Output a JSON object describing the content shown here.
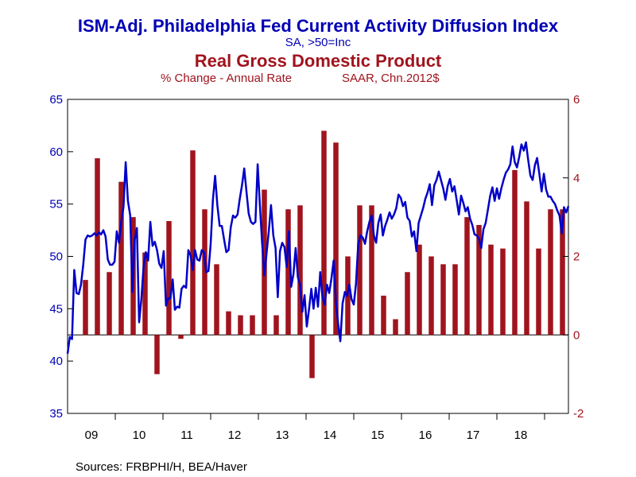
{
  "chart_data": {
    "type": "bar+line",
    "title": "ISM-Adj. Philadelphia Fed Current Activity Diffusion Index",
    "subtitle": "SA, >50=Inc",
    "title2": "Real Gross Domestic Product",
    "subtitle2_left": "% Change - Annual Rate",
    "subtitle2_right": "SAAR, Chn.2012$",
    "source": "Sources:  FRBPHI/H, BEA/Haver",
    "left_axis": {
      "min": 35,
      "max": 65,
      "ticks": [
        "35",
        "40",
        "45",
        "50",
        "55",
        "60",
        "65"
      ]
    },
    "right_axis": {
      "min": -2,
      "max": 6,
      "ticks": [
        "-2",
        "0",
        "2",
        "4",
        "6"
      ]
    },
    "x_axis": {
      "start": 2009.0,
      "end": 2019.5,
      "labels": [
        "09",
        "10",
        "11",
        "12",
        "13",
        "14",
        "15",
        "16",
        "17",
        "18"
      ]
    },
    "colors": {
      "line": "#0000c8",
      "bars": "#a0141e",
      "title_blue": "#0000b4",
      "title_red": "#a0141e",
      "frame": "#000000"
    },
    "series": [
      {
        "name": "Real Gross Domestic Product",
        "type": "bar",
        "axis": "right",
        "quarters": [
          "2009Q2",
          "2009Q3",
          "2009Q4",
          "2010Q1",
          "2010Q2",
          "2010Q3",
          "2010Q4",
          "2011Q1",
          "2011Q2",
          "2011Q3",
          "2011Q4",
          "2012Q1",
          "2012Q2",
          "2012Q3",
          "2012Q4",
          "2013Q1",
          "2013Q2",
          "2013Q3",
          "2013Q4",
          "2014Q1",
          "2014Q2",
          "2014Q3",
          "2014Q4",
          "2015Q1",
          "2015Q2",
          "2015Q3",
          "2015Q4",
          "2016Q1",
          "2016Q2",
          "2016Q3",
          "2016Q4",
          "2017Q1",
          "2017Q2",
          "2017Q3",
          "2017Q4",
          "2018Q1",
          "2018Q2",
          "2018Q3",
          "2018Q4",
          "2019Q1",
          "2019Q2"
        ],
        "values": [
          1.4,
          4.5,
          1.6,
          3.9,
          3.0,
          2.1,
          -1.0,
          2.9,
          -0.1,
          4.7,
          3.2,
          1.8,
          0.6,
          0.5,
          0.5,
          3.7,
          0.5,
          3.2,
          3.3,
          -1.1,
          5.2,
          4.9,
          2.0,
          3.3,
          3.3,
          1.0,
          0.4,
          1.6,
          2.3,
          2.0,
          1.8,
          1.8,
          3.0,
          2.8,
          2.3,
          2.2,
          4.2,
          3.4,
          2.2,
          3.2,
          3.2
        ]
      },
      {
        "name": "ISM-Adj. Philadelphia Fed Current Activity Diffusion Index",
        "type": "line",
        "axis": "left",
        "start": "2009-01",
        "values": [
          40.7,
          42.3,
          42.1,
          48.7,
          46.5,
          46.4,
          47.3,
          49.2,
          51.6,
          52.0,
          51.9,
          52.0,
          52.2,
          52.0,
          52.3,
          52.1,
          52.5,
          51.9,
          49.7,
          49.2,
          49.2,
          49.5,
          52.4,
          51.3,
          53.3,
          54.7,
          59.0,
          55.3,
          53.9,
          46.6,
          51.6,
          52.7,
          43.7,
          45.9,
          49.0,
          50.4,
          49.6,
          53.3,
          51.0,
          51.4,
          50.6,
          49.3,
          48.9,
          50.5,
          45.3,
          46.0,
          46.0,
          47.8,
          44.9,
          45.2,
          45.1,
          46.9,
          47.2,
          47.0,
          50.6,
          50.1,
          48.7,
          50.6,
          49.7,
          49.6,
          50.6,
          50.4,
          48.5,
          48.6,
          51.2,
          55.4,
          57.7,
          54.9,
          52.9,
          52.9,
          51.6,
          50.4,
          50.6,
          52.8,
          53.9,
          53.7,
          54.0,
          55.5,
          56.8,
          58.4,
          56.2,
          54.1,
          53.3,
          53.1,
          53.3,
          58.8,
          54.9,
          51.3,
          48.2,
          50.3,
          52.4,
          54.9,
          52.0,
          50.8,
          46.1,
          50.5,
          51.3,
          50.9,
          49.0,
          52.4,
          47.1,
          48.3,
          50.8,
          48.0,
          47.3,
          44.7,
          46.3,
          43.3,
          45.0,
          46.9,
          45.0,
          47.0,
          45.2,
          48.5,
          46.1,
          45.4,
          47.3,
          46.5,
          47.9,
          49.6,
          45.7,
          43.6,
          41.9,
          45.5,
          46.6,
          46.2,
          47.3,
          45.9,
          45.4,
          47.4,
          51.2,
          52.0,
          51.8,
          51.2,
          52.4,
          53.3,
          53.9,
          52.0,
          51.3,
          53.2,
          54.0,
          52.0,
          52.9,
          53.5,
          54.2,
          53.6,
          54.0,
          54.6,
          55.9,
          55.6,
          54.8,
          55.2,
          53.7,
          53.4,
          51.9,
          52.4,
          50.5,
          53.2,
          53.9,
          54.6,
          55.5,
          56.1,
          56.9,
          54.9,
          56.8,
          57.3,
          58.1,
          57.3,
          56.5,
          55.4,
          56.7,
          57.4,
          56.2,
          56.7,
          55.4,
          54.0,
          55.8,
          55.1,
          54.3,
          54.7,
          53.6,
          53.0,
          52.1,
          52.0,
          51.7,
          50.8,
          52.6,
          53.2,
          54.5,
          55.8,
          56.6,
          55.3,
          56.5,
          55.5,
          56.5,
          57.3,
          58.0,
          58.3,
          58.8,
          60.5,
          59.0,
          58.5,
          59.5,
          60.7,
          60.1,
          60.9,
          59.2,
          57.7,
          57.3,
          58.7,
          59.4,
          57.9,
          56.2,
          57.9,
          56.4,
          55.7,
          55.7,
          55.3,
          55.0,
          54.4,
          53.9,
          52.2,
          54.7,
          54.2,
          54.8
        ]
      }
    ]
  }
}
